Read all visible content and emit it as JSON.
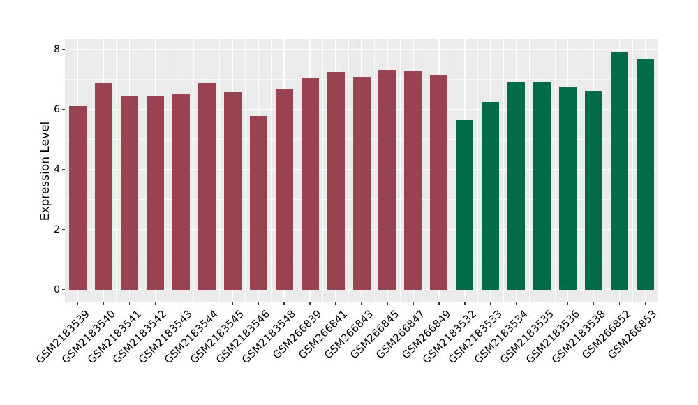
{
  "figure": {
    "background": "#FFFFFF"
  },
  "chart_data": {
    "type": "bar",
    "title": "",
    "xlabel": "",
    "ylabel": "Expression Level",
    "ylim": [
      -0.42,
      8.34
    ],
    "yticks": [
      0,
      2,
      4,
      6,
      8
    ],
    "yticks_minor": [
      1,
      3,
      5,
      7
    ],
    "grid": true,
    "legend_position": "none",
    "panel_background": "#EBEBEB",
    "gridline_color": "#FFFFFF",
    "tick_mark_color": "#333333",
    "text_color": "#000000",
    "group_colors": {
      "group1": "#9A4350",
      "group2": "#026B4A"
    },
    "categories": [
      "GSM2183539",
      "GSM2183540",
      "GSM2183541",
      "GSM2183542",
      "GSM2183543",
      "GSM2183544",
      "GSM2183545",
      "GSM2183546",
      "GSM2183548",
      "GSM266839",
      "GSM266841",
      "GSM266843",
      "GSM266845",
      "GSM266847",
      "GSM266849",
      "GSM2183532",
      "GSM2183533",
      "GSM2183534",
      "GSM2183535",
      "GSM2183536",
      "GSM2183538",
      "GSM266852",
      "GSM266853"
    ],
    "values": [
      6.1,
      6.87,
      6.43,
      6.43,
      6.53,
      6.87,
      6.58,
      5.78,
      6.67,
      7.03,
      7.25,
      7.09,
      7.31,
      7.27,
      7.15,
      5.64,
      6.24,
      6.89,
      6.89,
      6.76,
      6.63,
      7.91,
      7.7
    ],
    "bar_groups": [
      "group1",
      "group1",
      "group1",
      "group1",
      "group1",
      "group1",
      "group1",
      "group1",
      "group1",
      "group1",
      "group1",
      "group1",
      "group1",
      "group1",
      "group1",
      "group2",
      "group2",
      "group2",
      "group2",
      "group2",
      "group2",
      "group2",
      "group2"
    ]
  }
}
